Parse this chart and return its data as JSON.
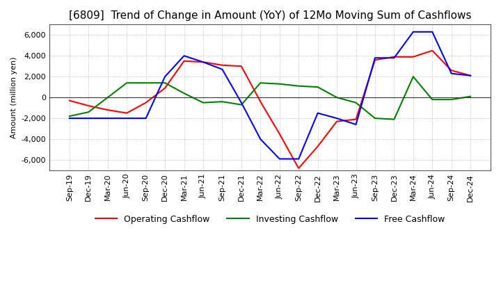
{
  "title": "[6809]  Trend of Change in Amount (YoY) of 12Mo Moving Sum of Cashflows",
  "ylabel": "Amount (million yen)",
  "ylim": [
    -7000,
    7000
  ],
  "yticks": [
    -6000,
    -4000,
    -2000,
    0,
    2000,
    4000,
    6000
  ],
  "x_labels": [
    "Sep-19",
    "Dec-19",
    "Mar-20",
    "Jun-20",
    "Sep-20",
    "Dec-20",
    "Mar-21",
    "Jun-21",
    "Sep-21",
    "Dec-21",
    "Mar-22",
    "Jun-22",
    "Sep-22",
    "Dec-22",
    "Mar-23",
    "Jun-23",
    "Sep-23",
    "Dec-23",
    "Mar-24",
    "Jun-24",
    "Sep-24",
    "Dec-24"
  ],
  "operating": [
    -300,
    -800,
    -1200,
    -1500,
    -500,
    900,
    3500,
    3400,
    3100,
    3000,
    -400,
    -3500,
    -6800,
    -4700,
    -2300,
    -2100,
    3600,
    3900,
    3900,
    4500,
    2600,
    2100
  ],
  "investing": [
    -1800,
    -1400,
    0,
    1400,
    1400,
    1400,
    400,
    -500,
    -400,
    -700,
    1400,
    1300,
    1100,
    1000,
    0,
    -500,
    -2000,
    -2100,
    2000,
    -200,
    -200,
    100
  ],
  "free": [
    -2000,
    -2000,
    -2000,
    -2000,
    -2000,
    2000,
    4000,
    3400,
    2700,
    -500,
    -4000,
    -5900,
    -5900,
    -1500,
    -2000,
    -2600,
    3800,
    3800,
    6300,
    6300,
    2300,
    2100
  ],
  "operating_color": "#ff0000",
  "investing_color": "#008000",
  "free_color": "#0000ff",
  "background_color": "#ffffff",
  "grid_color": "#aaaaaa",
  "title_fontsize": 11,
  "legend_fontsize": 9,
  "tick_fontsize": 8
}
